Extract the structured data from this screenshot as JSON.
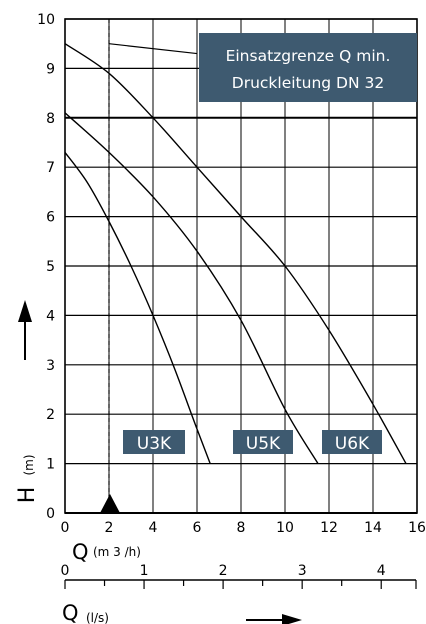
{
  "chart_data": {
    "type": "line",
    "xlabel_main": "Q",
    "xunit_main": "(m 3 /h)",
    "xlabel_secondary": "Q",
    "xunit_secondary": "(l/s)",
    "ylabel": "H",
    "yunit": "(m)",
    "xlim": [
      0,
      16
    ],
    "ylim": [
      0,
      10
    ],
    "secondary_xlim": [
      0,
      4.44
    ],
    "x_ticks": [
      "0",
      "2",
      "4",
      "6",
      "8",
      "10",
      "12",
      "14",
      "16"
    ],
    "y_ticks": [
      "0",
      "1",
      "2",
      "3",
      "4",
      "5",
      "6",
      "7",
      "8",
      "9",
      "10"
    ],
    "secondary_ticks": [
      "0",
      "1",
      "2",
      "3",
      "4"
    ],
    "grid": true,
    "series": [
      {
        "name": "U3K",
        "x": [
          0,
          1,
          2,
          3,
          4,
          5,
          6,
          6.6
        ],
        "y": [
          7.3,
          6.7,
          5.9,
          5.0,
          4.0,
          2.9,
          1.7,
          1.0
        ]
      },
      {
        "name": "U5K",
        "x": [
          0,
          2,
          4,
          6,
          8,
          10,
          11.5
        ],
        "y": [
          8.1,
          7.3,
          6.4,
          5.3,
          3.9,
          2.1,
          1.0
        ]
      },
      {
        "name": "U6K",
        "x": [
          0,
          2,
          4,
          6,
          8,
          10,
          12,
          14,
          15.5
        ],
        "y": [
          9.5,
          8.9,
          8.0,
          7.0,
          6.0,
          5.0,
          3.7,
          2.2,
          1.0
        ]
      }
    ],
    "min_flow_x": 2,
    "leader_line": {
      "x": [
        2,
        6
      ],
      "y": [
        9.5,
        9.3
      ]
    },
    "annotation": [
      "Einsatzgrenze Q min.",
      "Druckleitung DN 32"
    ],
    "colors": {
      "label_fill": "#3e5a70",
      "curve": "#000000",
      "grid": "#000000"
    }
  }
}
